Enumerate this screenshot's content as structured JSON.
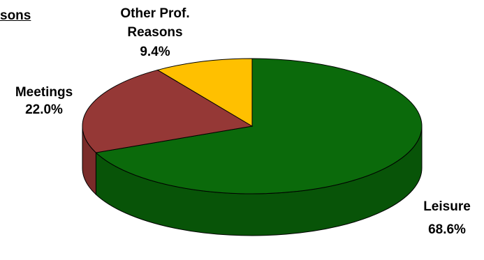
{
  "chart_data": {
    "type": "pie",
    "title_fragment": "sons",
    "three_d": true,
    "slices": [
      {
        "label_lines": [
          "Leisure"
        ],
        "value_label": "68.6%",
        "value": 68.6,
        "color": "#0b6a0b",
        "side_color": "#085408"
      },
      {
        "label_lines": [
          "Meetings"
        ],
        "value_label": "22.0%",
        "value": 22.0,
        "color": "#953836",
        "side_color": "#7a2c2a"
      },
      {
        "label_lines": [
          "Other Prof.",
          "Reasons"
        ],
        "value_label": "9.4%",
        "value": 9.4,
        "color": "#ffc000",
        "side_color": "#cc9900"
      }
    ]
  }
}
